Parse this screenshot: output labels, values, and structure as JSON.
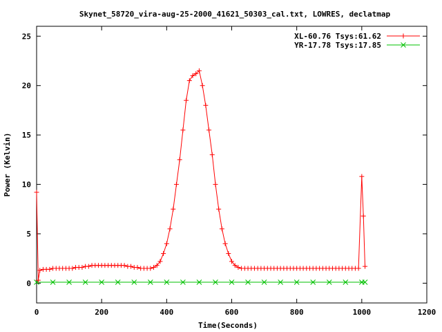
{
  "chart_data": {
    "type": "line",
    "title": "Skynet_58720_vira-aug-25-2000_41621_50303_cal.txt, LOWRES, declatmap",
    "xlabel": "Time(Seconds)",
    "ylabel": "Power (Kelvin)",
    "xlim": [
      0,
      1200
    ],
    "ylim": [
      -2,
      26
    ],
    "x_ticks": [
      0,
      200,
      400,
      600,
      800,
      1000,
      1200
    ],
    "y_ticks": [
      0,
      5,
      10,
      15,
      20,
      25
    ],
    "grid": false,
    "legend_position": "top-right",
    "series": [
      {
        "name": "XL-60.76 Tsys:61.62",
        "color": "#ff0000",
        "marker": "plus",
        "x": [
          0,
          5,
          10,
          20,
          30,
          40,
          50,
          60,
          70,
          80,
          90,
          100,
          110,
          120,
          130,
          140,
          150,
          160,
          170,
          180,
          190,
          200,
          210,
          220,
          230,
          240,
          250,
          260,
          270,
          280,
          290,
          300,
          310,
          320,
          330,
          340,
          350,
          360,
          370,
          380,
          390,
          400,
          410,
          420,
          430,
          440,
          450,
          460,
          470,
          480,
          490,
          500,
          510,
          520,
          530,
          540,
          550,
          560,
          570,
          580,
          590,
          600,
          610,
          620,
          630,
          640,
          650,
          660,
          670,
          680,
          690,
          700,
          710,
          720,
          730,
          740,
          750,
          760,
          770,
          780,
          790,
          800,
          810,
          820,
          830,
          840,
          850,
          860,
          870,
          880,
          890,
          900,
          910,
          920,
          930,
          940,
          950,
          960,
          970,
          980,
          990,
          1000,
          1005,
          1010
        ],
        "y": [
          9.2,
          0.3,
          1.3,
          1.4,
          1.4,
          1.4,
          1.5,
          1.5,
          1.5,
          1.5,
          1.5,
          1.5,
          1.5,
          1.6,
          1.6,
          1.6,
          1.7,
          1.7,
          1.8,
          1.8,
          1.8,
          1.8,
          1.8,
          1.8,
          1.8,
          1.8,
          1.8,
          1.8,
          1.8,
          1.7,
          1.7,
          1.6,
          1.6,
          1.5,
          1.5,
          1.5,
          1.5,
          1.6,
          1.8,
          2.2,
          3.0,
          4.0,
          5.5,
          7.5,
          10.0,
          12.5,
          15.5,
          18.5,
          20.5,
          21.0,
          21.2,
          21.5,
          20.0,
          18.0,
          15.5,
          13.0,
          10.0,
          7.5,
          5.5,
          4.0,
          3.0,
          2.2,
          1.8,
          1.6,
          1.5,
          1.5,
          1.5,
          1.5,
          1.5,
          1.5,
          1.5,
          1.5,
          1.5,
          1.5,
          1.5,
          1.5,
          1.5,
          1.5,
          1.5,
          1.5,
          1.5,
          1.5,
          1.5,
          1.5,
          1.5,
          1.5,
          1.5,
          1.5,
          1.5,
          1.5,
          1.5,
          1.5,
          1.5,
          1.5,
          1.5,
          1.5,
          1.5,
          1.5,
          1.5,
          1.5,
          1.5,
          10.8,
          6.8,
          1.7
        ]
      },
      {
        "name": "YR-17.78 Tsys:17.85",
        "color": "#00c000",
        "marker": "cross",
        "x": [
          0,
          50,
          100,
          150,
          200,
          250,
          300,
          350,
          400,
          450,
          500,
          550,
          600,
          650,
          700,
          750,
          800,
          850,
          900,
          950,
          1000,
          1010
        ],
        "y": [
          0.1,
          0.1,
          0.1,
          0.1,
          0.1,
          0.1,
          0.1,
          0.1,
          0.1,
          0.1,
          0.1,
          0.1,
          0.1,
          0.1,
          0.1,
          0.1,
          0.1,
          0.1,
          0.1,
          0.1,
          0.1,
          0.1
        ]
      }
    ]
  }
}
